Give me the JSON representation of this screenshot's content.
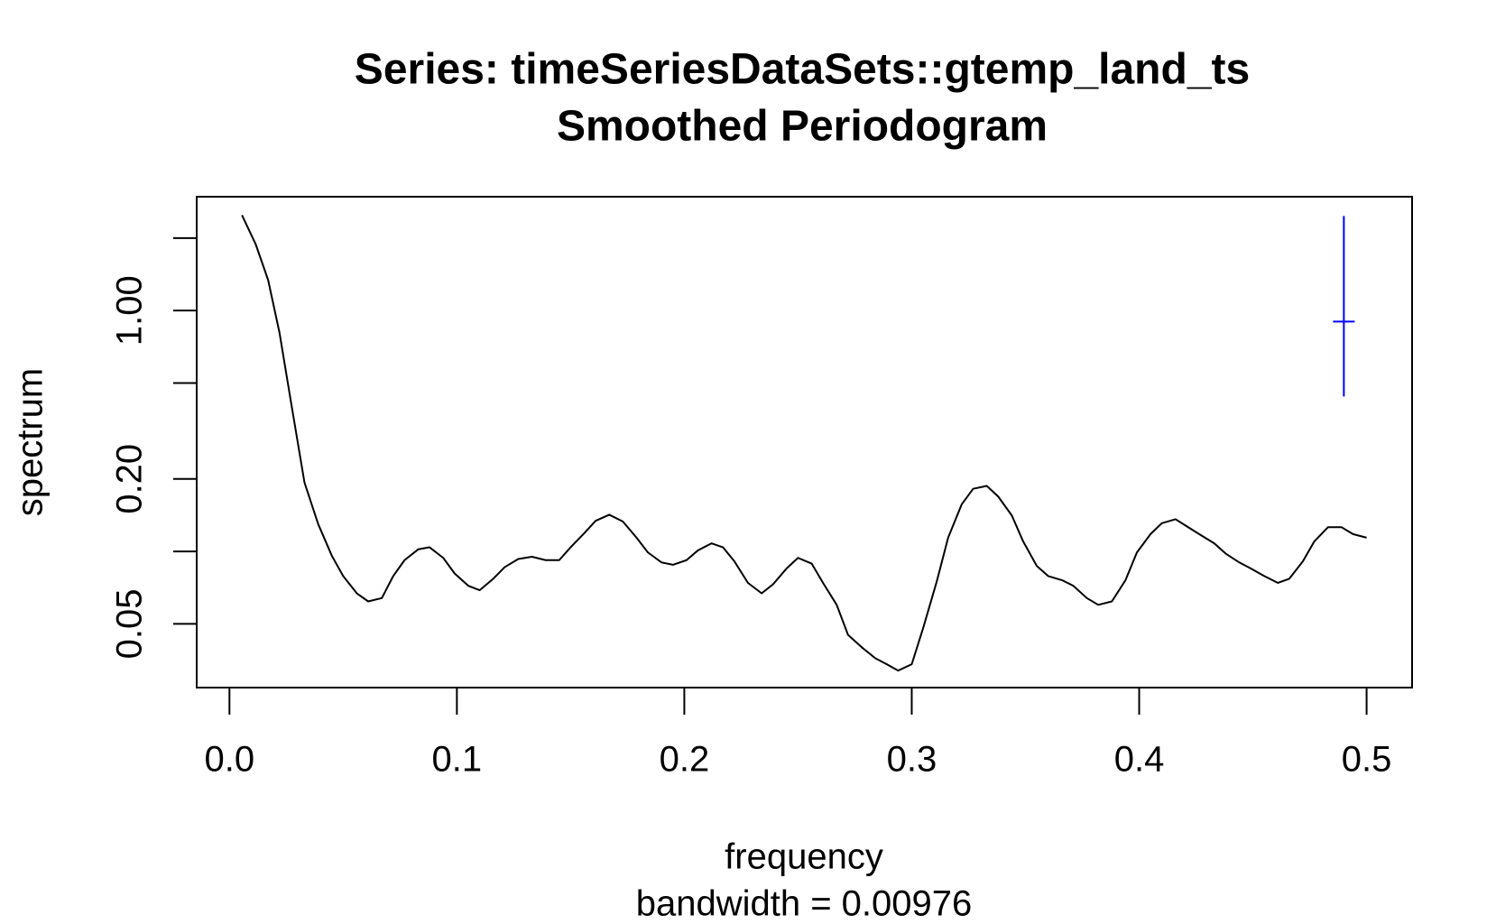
{
  "chart_data": {
    "type": "line",
    "title": "Series: timeSeriesDataSets::gtemp_land_ts",
    "subtitle": "Smoothed Periodogram",
    "x_label": "frequency",
    "x_sublabel": "bandwidth = 0.00976",
    "y_label": "spectrum",
    "log_y": true,
    "color": "#000000",
    "x": [
      0.0055,
      0.0115,
      0.017,
      0.022,
      0.027,
      0.033,
      0.039,
      0.045,
      0.05,
      0.056,
      0.061,
      0.067,
      0.072,
      0.077,
      0.083,
      0.088,
      0.094,
      0.099,
      0.105,
      0.11,
      0.116,
      0.121,
      0.127,
      0.133,
      0.139,
      0.145,
      0.15,
      0.156,
      0.161,
      0.167,
      0.173,
      0.179,
      0.184,
      0.19,
      0.195,
      0.201,
      0.206,
      0.212,
      0.217,
      0.222,
      0.228,
      0.234,
      0.239,
      0.245,
      0.25,
      0.256,
      0.261,
      0.267,
      0.272,
      0.278,
      0.284,
      0.289,
      0.294,
      0.3,
      0.305,
      0.311,
      0.316,
      0.322,
      0.327,
      0.333,
      0.338,
      0.344,
      0.349,
      0.355,
      0.36,
      0.366,
      0.371,
      0.377,
      0.382,
      0.388,
      0.394,
      0.399,
      0.405,
      0.41,
      0.416,
      0.421,
      0.427,
      0.433,
      0.438,
      0.444,
      0.449,
      0.455,
      0.461,
      0.466,
      0.472,
      0.477,
      0.483,
      0.489,
      0.494,
      0.5
    ],
    "values": [
      2.49,
      1.89,
      1.34,
      0.81,
      0.42,
      0.193,
      0.13,
      0.096,
      0.079,
      0.067,
      0.062,
      0.064,
      0.079,
      0.092,
      0.102,
      0.104,
      0.094,
      0.081,
      0.072,
      0.069,
      0.077,
      0.086,
      0.093,
      0.095,
      0.092,
      0.092,
      0.104,
      0.119,
      0.134,
      0.142,
      0.133,
      0.114,
      0.099,
      0.09,
      0.088,
      0.092,
      0.101,
      0.108,
      0.104,
      0.091,
      0.074,
      0.067,
      0.073,
      0.085,
      0.094,
      0.089,
      0.074,
      0.06,
      0.045,
      0.04,
      0.036,
      0.034,
      0.032,
      0.034,
      0.048,
      0.075,
      0.114,
      0.157,
      0.182,
      0.187,
      0.169,
      0.141,
      0.11,
      0.087,
      0.079,
      0.076,
      0.072,
      0.064,
      0.06,
      0.062,
      0.076,
      0.099,
      0.118,
      0.131,
      0.136,
      0.127,
      0.117,
      0.108,
      0.098,
      0.09,
      0.085,
      0.079,
      0.074,
      0.077,
      0.091,
      0.11,
      0.126,
      0.126,
      0.118,
      0.114
    ],
    "xlim": [
      -0.0144,
      0.52
    ],
    "ylim": [
      0.0272,
      2.97
    ],
    "xticks": [
      {
        "value": 0,
        "label": "0.0"
      },
      0.1,
      0.2,
      0.3,
      0.4,
      0.5
    ],
    "yticks": [
      0.05,
      {
        "value": 0.1,
        "label": null
      },
      {
        "value": 0.2,
        "label": "0.20"
      },
      {
        "value": 0.5,
        "label": null
      },
      {
        "value": 1,
        "label": "1.00"
      },
      {
        "value": 2,
        "label": null
      }
    ],
    "ci_bar": {
      "x": 0.49,
      "center": 0.9,
      "lower": 0.44,
      "upper": 2.47,
      "color": "#0000ff"
    }
  }
}
